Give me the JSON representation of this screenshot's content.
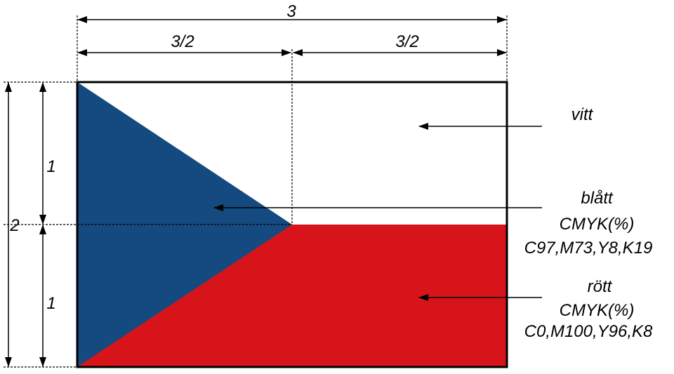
{
  "colors": {
    "blue": "#144a7f",
    "red": "#d7141a",
    "white": "#ffffff"
  },
  "dimensions": {
    "total_width": "3",
    "half_width_left": "3/2",
    "half_width_right": "3/2",
    "total_height": "2",
    "upper_height": "1",
    "lower_height": "1"
  },
  "labels": {
    "white": {
      "name": "vitt"
    },
    "blue": {
      "name": "blått",
      "cmyk_title": "CMYK(%)",
      "cmyk": "C97,M73,Y8,K19"
    },
    "red": {
      "name": "rött",
      "cmyk_title": "CMYK(%)",
      "cmyk": "C0,M100,Y96,K8"
    }
  }
}
